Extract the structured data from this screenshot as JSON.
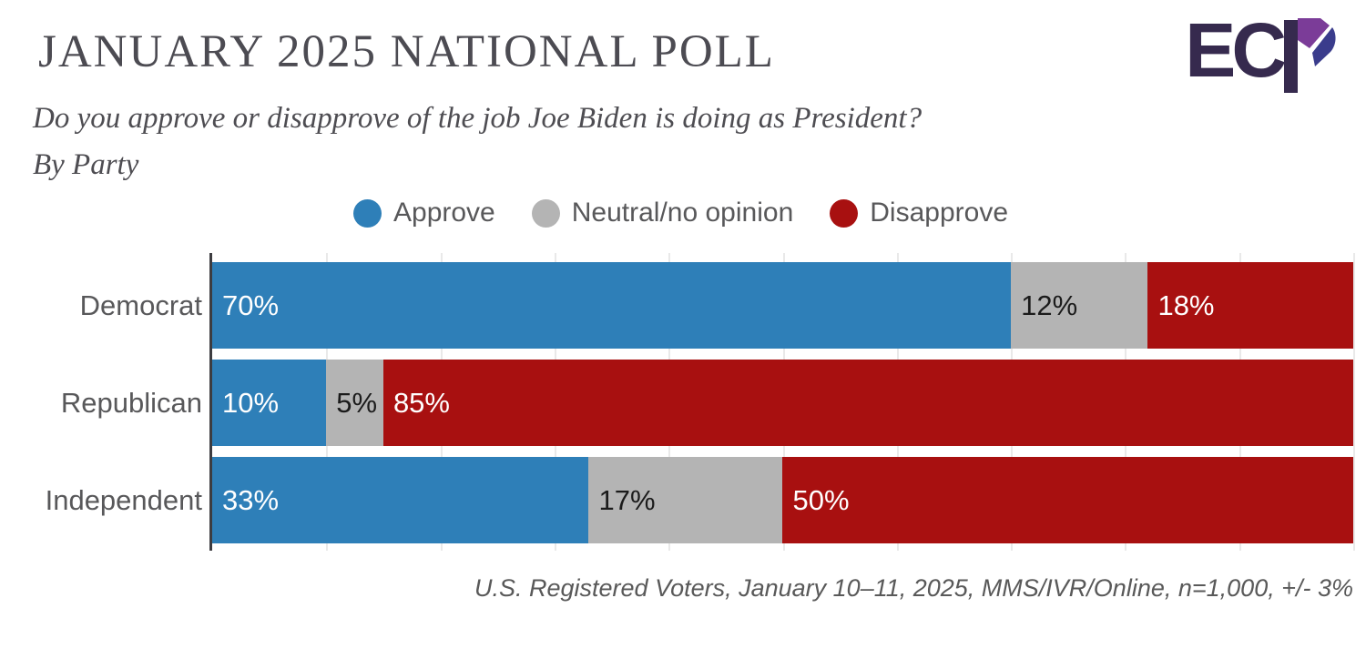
{
  "header": {
    "title": "JANUARY 2025 NATIONAL POLL",
    "question": "Do you approve or disapprove of the job Joe Biden is doing as President?",
    "breakdown": "By Party",
    "logo_text": "EC"
  },
  "chart_data": {
    "type": "bar",
    "orientation": "horizontal",
    "stacked": true,
    "categories": [
      "Democrat",
      "Republican",
      "Independent"
    ],
    "series": [
      {
        "name": "Approve",
        "color": "#2e7fb8",
        "label_color": "#ffffff",
        "values": [
          70,
          10,
          33
        ]
      },
      {
        "name": "Neutral/no opinion",
        "color": "#b4b4b4",
        "label_color": "#1b1b1b",
        "values": [
          12,
          5,
          17
        ]
      },
      {
        "name": "Disapprove",
        "color": "#a81010",
        "label_color": "#ffffff",
        "values": [
          18,
          85,
          50
        ]
      }
    ],
    "value_suffix": "%",
    "xlim": [
      0,
      100
    ],
    "gridline_step_percent": 10,
    "grid": true,
    "legend_position": "top"
  },
  "footer": {
    "source_note": "U.S. Registered Voters, January 10–11, 2025, MMS/IVR/Online, n=1,000, +/- 3%"
  },
  "colors": {
    "approve_blue": "#2e7fb8",
    "neutral_gray": "#b4b4b4",
    "disapprove_red": "#a81010",
    "axis": "#3d3c40",
    "gridline": "#e9e9e9",
    "title_text": "#4c4b52",
    "body_text": "#58585a",
    "logo_dark_purple": "#362a4e",
    "logo_purple": "#7b3c98",
    "logo_indigo": "#3a3c8c"
  }
}
